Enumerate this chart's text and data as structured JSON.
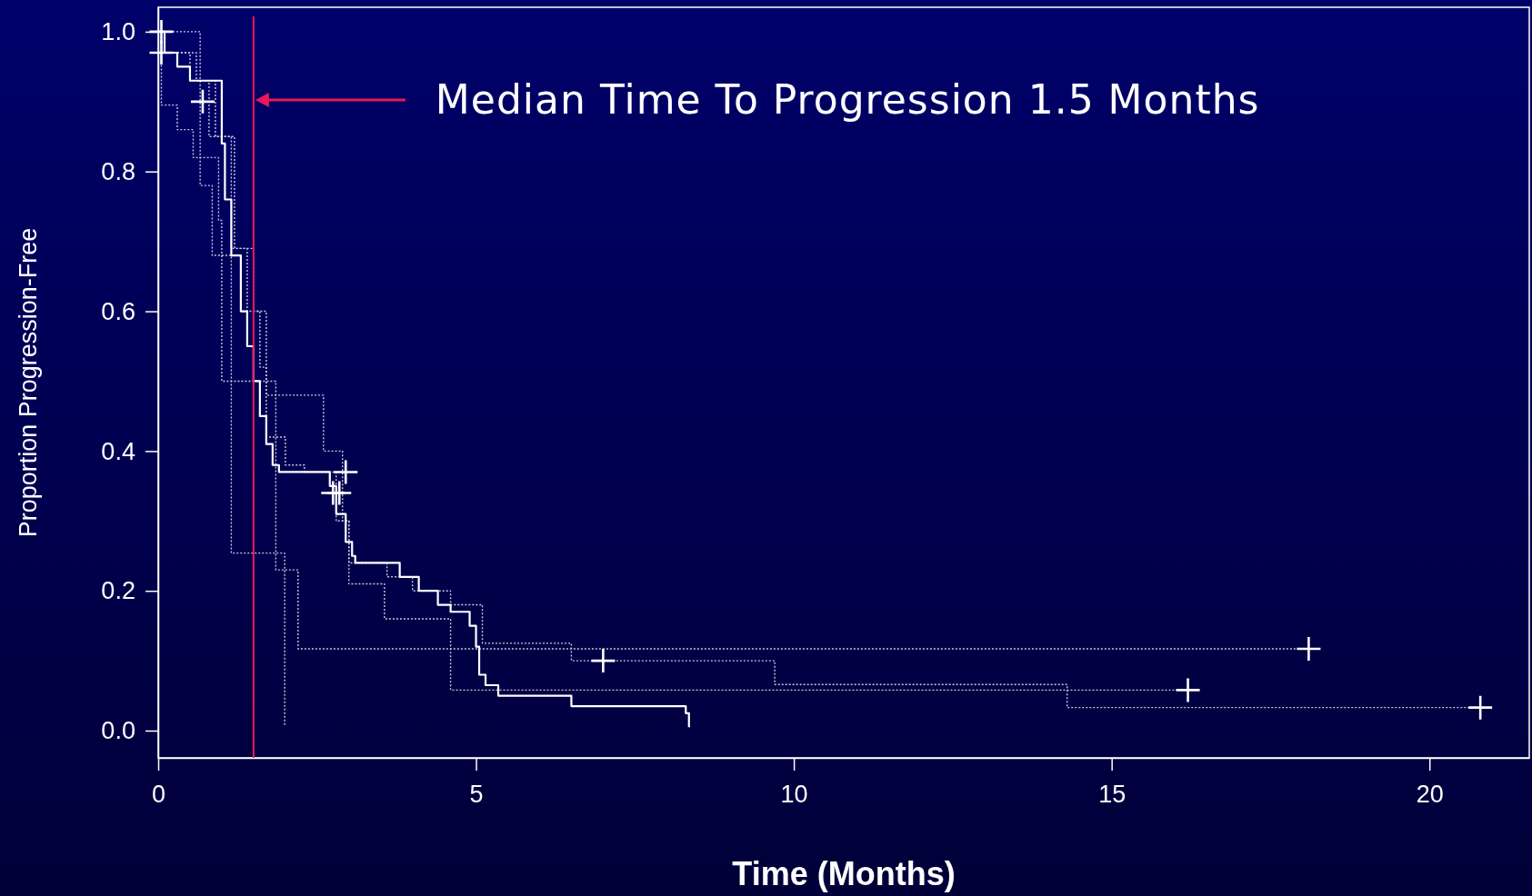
{
  "chart_data": {
    "type": "step",
    "xlabel": "Time (Months)",
    "ylabel": "Proportion Progression-Free",
    "xlim": [
      0,
      21.57
    ],
    "ylim": [
      -0.039,
      1.035
    ],
    "xticks": [
      0,
      5,
      10,
      15,
      20
    ],
    "yticks": [
      {
        "value": 0,
        "label": "0.0"
      },
      {
        "value": 0.2,
        "label": "0.2"
      },
      {
        "value": 0.4,
        "label": "0.4"
      },
      {
        "value": 0.6,
        "label": "0.6"
      },
      {
        "value": 0.8,
        "label": "0.8"
      },
      {
        "value": 1,
        "label": "1.0"
      }
    ],
    "grid": false,
    "ref_lines": [
      {
        "axis": "x",
        "value": 1.5,
        "color": "#e8185a",
        "line_style": "solid"
      }
    ],
    "annotations": [
      "Median Time To Progression 1.5 Months"
    ],
    "series": [
      {
        "color": "#c8c8dc",
        "line_style": "dotted",
        "x": [
          0,
          0.66,
          0.85,
          1.15,
          1.99
        ],
        "values": [
          1.0,
          0.78,
          0.68,
          0.254,
          0.006
        ]
      },
      {
        "color": "#c8c8dc",
        "line_style": "dotted",
        "x": [
          0,
          0.05,
          0.3,
          0.55,
          0.95,
          1.0,
          1.85,
          2.2,
          18.1
        ],
        "values": [
          1.0,
          0.895,
          0.86,
          0.82,
          0.73,
          0.5,
          0.23,
          0.117,
          0.117
        ]
      },
      {
        "color": "#c8c8dc",
        "line_style": "dotted",
        "x": [
          0,
          0.1,
          0.5,
          0.8,
          1.15,
          1.4,
          1.6,
          1.7,
          2.0,
          2.3,
          2.8,
          3.0,
          3.56,
          4.6,
          16.2
        ],
        "values": [
          1.0,
          0.97,
          0.93,
          0.85,
          0.69,
          0.6,
          0.52,
          0.42,
          0.38,
          0.37,
          0.3,
          0.21,
          0.16,
          0.058,
          0.058
        ]
      },
      {
        "color": "#c8c8dc",
        "line_style": "dotted",
        "x": [
          0,
          0.1,
          0.6,
          0.9,
          1.2,
          1.5,
          1.7,
          2.6,
          2.9,
          3.0,
          3.6,
          4.0,
          4.6,
          5.1,
          6.5,
          9.7,
          14.3,
          20.8
        ],
        "values": [
          1.0,
          0.97,
          0.93,
          0.85,
          0.69,
          0.6,
          0.48,
          0.4,
          0.3,
          0.24,
          0.22,
          0.2,
          0.18,
          0.125,
          0.1,
          0.066,
          0.033,
          0.033
        ]
      },
      {
        "color": "#ffffff",
        "line_style": "solid",
        "x": [
          0,
          0.1,
          0.3,
          0.5,
          1.0,
          1.05,
          1.15,
          1.3,
          1.4,
          1.5,
          1.6,
          1.7,
          1.8,
          1.9,
          2.7,
          2.8,
          2.95,
          3.05,
          3.1,
          3.8,
          4.1,
          4.4,
          4.6,
          4.9,
          5.0,
          5.05,
          5.15,
          5.35,
          6.5,
          8.3,
          8.35
        ],
        "values": [
          1.0,
          0.97,
          0.95,
          0.93,
          0.84,
          0.76,
          0.68,
          0.6,
          0.55,
          0.5,
          0.45,
          0.41,
          0.38,
          0.37,
          0.35,
          0.31,
          0.27,
          0.25,
          0.24,
          0.22,
          0.2,
          0.18,
          0.17,
          0.15,
          0.12,
          0.08,
          0.065,
          0.05,
          0.035,
          0.025,
          0.005
        ]
      },
      {
        "type": "scatter",
        "color": "#ffffff",
        "marker": "cross",
        "x": [
          0.05,
          0.05,
          0.7,
          2.75,
          2.85,
          2.95,
          7.0,
          16.2,
          18.1,
          20.8
        ],
        "values": [
          1.0,
          0.97,
          0.9,
          0.34,
          0.34,
          0.37,
          0.1,
          0.058,
          0.117,
          0.033
        ]
      }
    ]
  }
}
